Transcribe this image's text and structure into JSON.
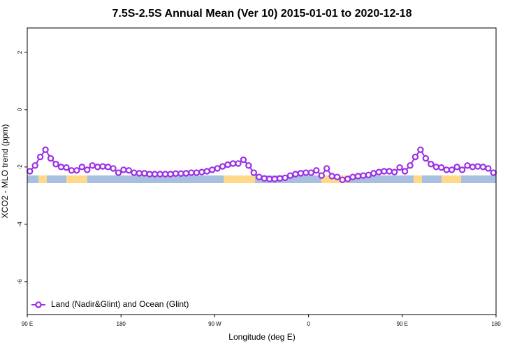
{
  "chart_data": {
    "type": "line",
    "title": "7.5S-2.5S Annual Mean (Ver 10)   2015-01-01 to 2020-12-18",
    "x_label": "Longitude (deg E)",
    "y_label": "XCO2 - MLO trend (ppm)",
    "xlim": [
      90,
      540
    ],
    "xticks": [
      {
        "value": 90,
        "label": "90 E"
      },
      180,
      {
        "value": 270,
        "label": "90 W"
      },
      {
        "value": 360,
        "label": "0"
      },
      {
        "value": 450,
        "label": "90 E"
      },
      {
        "value": 540,
        "label": "180"
      }
    ],
    "ylim": [
      -7.15,
      2.85
    ],
    "yticks": [
      2,
      0,
      -2,
      -4,
      -6
    ],
    "legend": "bottom-left",
    "x": [
      92.5,
      97.5,
      102.5,
      107.5,
      112.5,
      117.5,
      122.5,
      127.5,
      132.5,
      137.5,
      142.5,
      147.5,
      152.5,
      157.5,
      162.5,
      167.5,
      172.5,
      177.5,
      182.5,
      187.5,
      192.5,
      197.5,
      202.5,
      207.5,
      212.5,
      217.5,
      222.5,
      227.5,
      232.5,
      237.5,
      242.5,
      247.5,
      252.5,
      257.5,
      262.5,
      267.5,
      272.5,
      277.5,
      282.5,
      287.5,
      292.5,
      297.5,
      302.5,
      307.5,
      312.5,
      317.5,
      322.5,
      327.5,
      332.5,
      337.5,
      342.5,
      347.5,
      352.5,
      357.5,
      362.5,
      367.5,
      372.5,
      377.5,
      382.5,
      387.5,
      392.5,
      397.5,
      402.5,
      407.5,
      412.5,
      417.5,
      422.5,
      427.5,
      432.5,
      437.5,
      442.5,
      447.5,
      452.5,
      457.5,
      462.5,
      467.5,
      472.5,
      477.5,
      482.5,
      487.5,
      492.5,
      497.5,
      502.5,
      507.5,
      512.5,
      517.5,
      522.5,
      527.5,
      532.5,
      537.5
    ],
    "series": [
      {
        "name": "Land (Nadir&Glint) and Ocean (Glint)",
        "color": "#9b30e6",
        "values": [
          -2.15,
          -1.95,
          -1.65,
          -1.4,
          -1.7,
          -1.9,
          -2.0,
          -2.02,
          -2.12,
          -2.12,
          -2.0,
          -2.1,
          -1.95,
          -2.0,
          -1.98,
          -2.0,
          -2.05,
          -2.2,
          -2.1,
          -2.12,
          -2.2,
          -2.22,
          -2.22,
          -2.25,
          -2.25,
          -2.25,
          -2.25,
          -2.25,
          -2.23,
          -2.23,
          -2.22,
          -2.2,
          -2.2,
          -2.18,
          -2.15,
          -2.1,
          -2.05,
          -1.98,
          -1.92,
          -1.88,
          -1.88,
          -1.75,
          -1.95,
          -2.2,
          -2.35,
          -2.4,
          -2.42,
          -2.42,
          -2.4,
          -2.38,
          -2.3,
          -2.25,
          -2.22,
          -2.2,
          -2.2,
          -2.12,
          -2.3,
          -2.05,
          -2.32,
          -2.35,
          -2.45,
          -2.42,
          -2.35,
          -2.32,
          -2.3,
          -2.28,
          -2.22,
          -2.18,
          -2.15,
          -2.15,
          -2.18,
          -2.02,
          -2.15,
          -1.95,
          -1.65,
          -1.4,
          -1.7,
          -1.9,
          -2.0,
          -2.02,
          -2.1,
          -2.1,
          -2.0,
          -2.1,
          -1.95,
          -2.0,
          -1.98,
          -2.0,
          -2.05,
          -2.2
        ]
      }
    ]
  }
}
